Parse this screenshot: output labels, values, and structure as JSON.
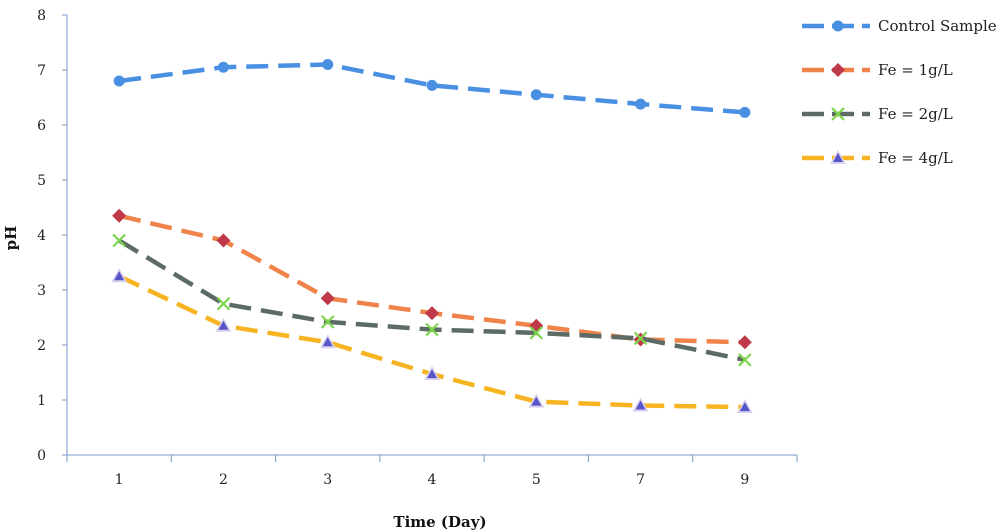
{
  "chart_data": {
    "type": "line",
    "title": "",
    "xlabel": "Time (Day)",
    "ylabel": "pH",
    "categories": [
      "1",
      "2",
      "3",
      "4",
      "5",
      "7",
      "9"
    ],
    "ylim": [
      0,
      8
    ],
    "yticks": [
      "0",
      "1",
      "2",
      "3",
      "4",
      "5",
      "6",
      "7",
      "8"
    ],
    "grid": false,
    "legend_position": "right",
    "series": [
      {
        "name": "Control Sample",
        "values": [
          6.8,
          7.05,
          7.1,
          6.72,
          6.55,
          6.38,
          6.23
        ],
        "color": "#4a90e2",
        "marker": "circle"
      },
      {
        "name": "Fe = 1g/L",
        "values": [
          4.35,
          3.9,
          2.85,
          2.58,
          2.35,
          2.1,
          2.05
        ],
        "color": "#f0834a",
        "marker": "diamond"
      },
      {
        "name": "Fe = 2g/L",
        "values": [
          3.9,
          2.75,
          2.42,
          2.28,
          2.22,
          2.12,
          1.73
        ],
        "color": "#5d6b67",
        "marker": "x"
      },
      {
        "name": "Fe = 4g/L",
        "values": [
          3.25,
          2.35,
          2.05,
          1.47,
          0.97,
          0.9,
          0.87
        ],
        "color": "#f7b422",
        "marker": "triangle"
      }
    ]
  }
}
